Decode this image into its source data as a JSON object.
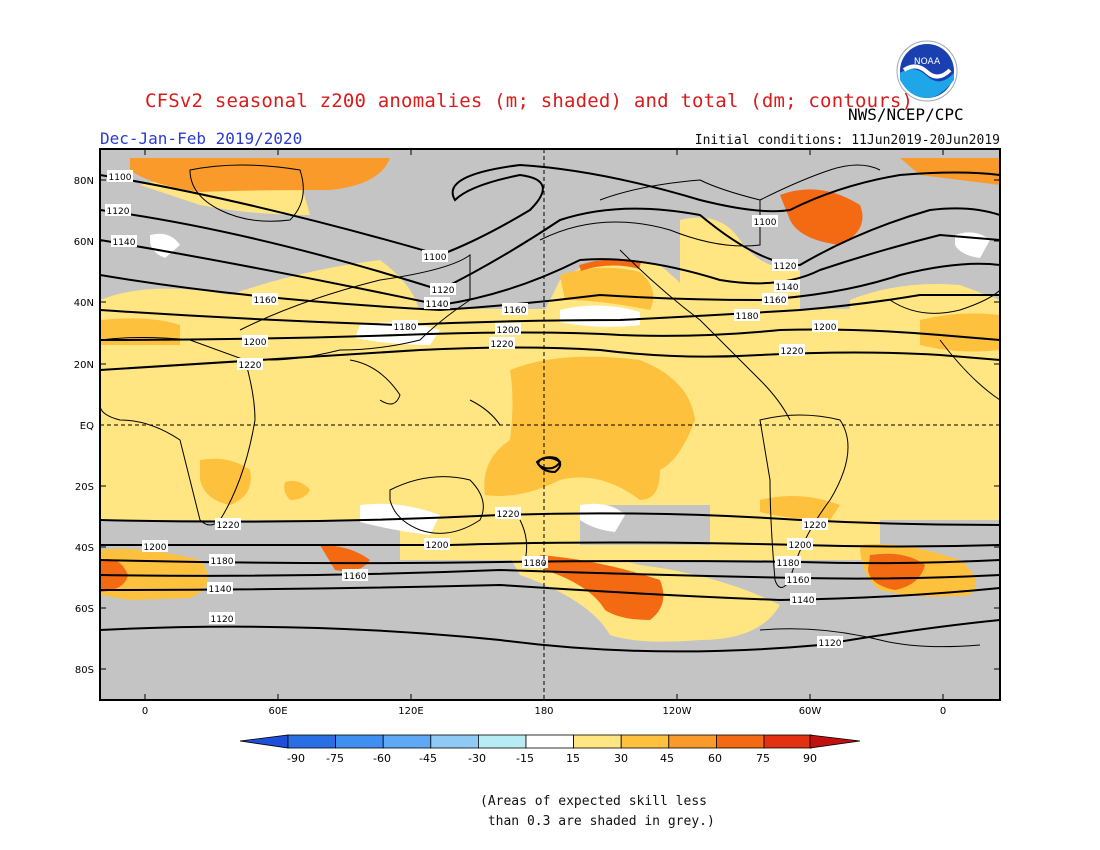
{
  "header": {
    "title": "CFSv2 seasonal z200 anomalies (m; shaded) and total (dm; contours)",
    "subtitle": "Dec-Jan-Feb 2019/2020",
    "initial_conditions": "Initial conditions: 11Jun2019-20Jun2019",
    "agency": "NWS/NCEP/CPC",
    "logo_text": "NOAA"
  },
  "map": {
    "lat_labels": [
      "80N",
      "60N",
      "40N",
      "20N",
      "EQ",
      "20S",
      "40S",
      "60S",
      "80S"
    ],
    "lon_labels": [
      "0",
      "60E",
      "120E",
      "180",
      "120W",
      "60W",
      "0"
    ],
    "contour_labels": {
      "1100": "1100",
      "1120": "1120",
      "1140": "1140",
      "1160": "1160",
      "1180": "1180",
      "1200": "1200",
      "1220": "1220"
    }
  },
  "colorbar": {
    "tick_labels": [
      "-90",
      "-75",
      "-60",
      "-45",
      "-30",
      "-15",
      "15",
      "30",
      "45",
      "60",
      "75",
      "90"
    ],
    "colors": [
      "#1e4fd8",
      "#2a6ee6",
      "#3f8ff0",
      "#5fa8f5",
      "#8fcaf7",
      "#b8ecf5",
      "#ffffff",
      "#ffe682",
      "#fdc13e",
      "#f99a2a",
      "#f46a12",
      "#e33010",
      "#c01010"
    ]
  },
  "note": "(Areas of expected skill less\n than 0.3 are shaded in grey.)"
}
